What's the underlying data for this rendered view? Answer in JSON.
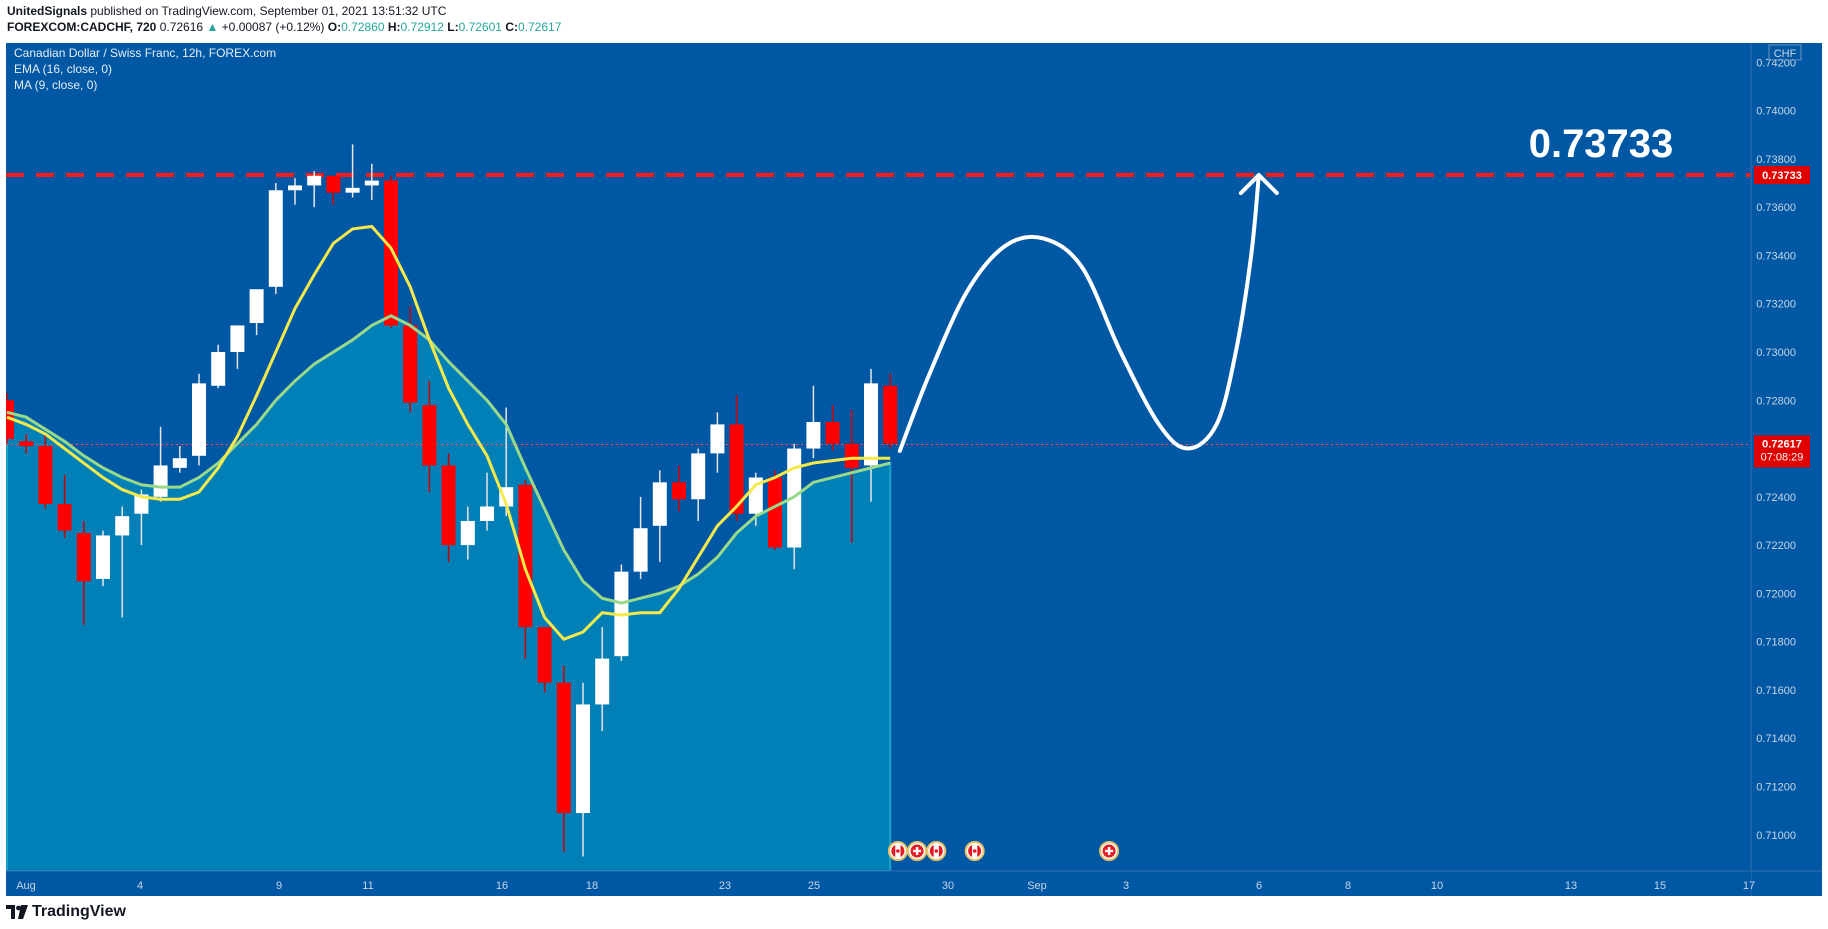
{
  "header": {
    "author": "UnitedSignals",
    "published": "published on TradingView.com, September 01, 2021 13:51:32 UTC",
    "symbol": "FOREXCOM:CADCHF, 720",
    "last": "0.72616",
    "change": "+0.00087 (+0.12%)",
    "o_label": "O:",
    "o": "0.72860",
    "h_label": "H:",
    "h": "0.72912",
    "l_label": "L:",
    "l": "0.72601",
    "c_label": "C:",
    "c": "0.72617"
  },
  "legend": {
    "title": "Canadian Dollar / Swiss Franc, 12h, FOREX.com",
    "ema": "EMA (16, close, 0)",
    "ma": "MA (9, close, 0)"
  },
  "footer": {
    "brand": "TradingView"
  },
  "colors": {
    "background": "#0057a3",
    "area": "#0080b6",
    "up": "#ffffff",
    "down": "#ff0000",
    "ema": "#f6e94a",
    "ma": "#9ad98a",
    "resistance": "#ff1a1a"
  },
  "chart_data": {
    "type": "candlestick",
    "currency": "CHF",
    "ylim": [
      0.7085,
      0.7428
    ],
    "yticks": [
      "0.74200",
      "0.74000",
      "0.73800",
      "0.73600",
      "0.73400",
      "0.73200",
      "0.73000",
      "0.72800",
      "0.72600",
      "0.72400",
      "0.72200",
      "0.72000",
      "0.71800",
      "0.71600",
      "0.71400",
      "0.71200",
      "0.71000"
    ],
    "xticks": [
      "Aug",
      "4",
      "9",
      "11",
      "16",
      "18",
      "23",
      "25",
      "30",
      "Sep",
      "3",
      "6",
      "8",
      "10",
      "13",
      "15",
      "17"
    ],
    "candles": [
      {
        "o": 0.728,
        "h": 0.7283,
        "l": 0.7262,
        "c": 0.7264
      },
      {
        "o": 0.7263,
        "h": 0.7266,
        "l": 0.7258,
        "c": 0.7261
      },
      {
        "o": 0.7261,
        "h": 0.7266,
        "l": 0.7235,
        "c": 0.7237
      },
      {
        "o": 0.7237,
        "h": 0.7249,
        "l": 0.7223,
        "c": 0.7226
      },
      {
        "o": 0.7225,
        "h": 0.723,
        "l": 0.7187,
        "c": 0.7205
      },
      {
        "o": 0.7206,
        "h": 0.7226,
        "l": 0.7203,
        "c": 0.7224
      },
      {
        "o": 0.7224,
        "h": 0.7236,
        "l": 0.719,
        "c": 0.7232
      },
      {
        "o": 0.7233,
        "h": 0.7243,
        "l": 0.722,
        "c": 0.7241
      },
      {
        "o": 0.724,
        "h": 0.7269,
        "l": 0.7238,
        "c": 0.7253
      },
      {
        "o": 0.7252,
        "h": 0.7261,
        "l": 0.725,
        "c": 0.7256
      },
      {
        "o": 0.7257,
        "h": 0.7291,
        "l": 0.7253,
        "c": 0.7287
      },
      {
        "o": 0.7286,
        "h": 0.7303,
        "l": 0.7285,
        "c": 0.73
      },
      {
        "o": 0.73,
        "h": 0.7311,
        "l": 0.7293,
        "c": 0.7311
      },
      {
        "o": 0.7312,
        "h": 0.7324,
        "l": 0.7307,
        "c": 0.7326
      },
      {
        "o": 0.7327,
        "h": 0.737,
        "l": 0.7324,
        "c": 0.7367
      },
      {
        "o": 0.7367,
        "h": 0.7372,
        "l": 0.7361,
        "c": 0.7369
      },
      {
        "o": 0.7369,
        "h": 0.7375,
        "l": 0.736,
        "c": 0.7373
      },
      {
        "o": 0.7373,
        "h": 0.7373,
        "l": 0.7361,
        "c": 0.7366
      },
      {
        "o": 0.7366,
        "h": 0.7386,
        "l": 0.7364,
        "c": 0.7368
      },
      {
        "o": 0.7369,
        "h": 0.7378,
        "l": 0.7363,
        "c": 0.7371
      },
      {
        "o": 0.7371,
        "h": 0.7373,
        "l": 0.731,
        "c": 0.7311
      },
      {
        "o": 0.7311,
        "h": 0.7319,
        "l": 0.7275,
        "c": 0.7279
      },
      {
        "o": 0.7278,
        "h": 0.7288,
        "l": 0.7242,
        "c": 0.7253
      },
      {
        "o": 0.7253,
        "h": 0.7258,
        "l": 0.7213,
        "c": 0.722
      },
      {
        "o": 0.722,
        "h": 0.7236,
        "l": 0.7214,
        "c": 0.723
      },
      {
        "o": 0.723,
        "h": 0.725,
        "l": 0.7226,
        "c": 0.7236
      },
      {
        "o": 0.7236,
        "h": 0.7277,
        "l": 0.7232,
        "c": 0.7244
      },
      {
        "o": 0.7245,
        "h": 0.7247,
        "l": 0.7173,
        "c": 0.7186
      },
      {
        "o": 0.7186,
        "h": 0.7186,
        "l": 0.7159,
        "c": 0.7163
      },
      {
        "o": 0.7163,
        "h": 0.717,
        "l": 0.7093,
        "c": 0.7109
      },
      {
        "o": 0.7109,
        "h": 0.7163,
        "l": 0.7091,
        "c": 0.7154
      },
      {
        "o": 0.7154,
        "h": 0.7186,
        "l": 0.7143,
        "c": 0.7173
      },
      {
        "o": 0.7174,
        "h": 0.7212,
        "l": 0.7172,
        "c": 0.7209
      },
      {
        "o": 0.7209,
        "h": 0.724,
        "l": 0.7206,
        "c": 0.7227
      },
      {
        "o": 0.7228,
        "h": 0.7251,
        "l": 0.7213,
        "c": 0.7246
      },
      {
        "o": 0.7246,
        "h": 0.7253,
        "l": 0.7234,
        "c": 0.7239
      },
      {
        "o": 0.7239,
        "h": 0.726,
        "l": 0.723,
        "c": 0.7258
      },
      {
        "o": 0.7258,
        "h": 0.7275,
        "l": 0.725,
        "c": 0.727
      },
      {
        "o": 0.727,
        "h": 0.7282,
        "l": 0.723,
        "c": 0.7233
      },
      {
        "o": 0.7233,
        "h": 0.725,
        "l": 0.7228,
        "c": 0.7248
      },
      {
        "o": 0.7248,
        "h": 0.7251,
        "l": 0.7218,
        "c": 0.7219
      },
      {
        "o": 0.7219,
        "h": 0.7262,
        "l": 0.721,
        "c": 0.726
      },
      {
        "o": 0.726,
        "h": 0.7286,
        "l": 0.7256,
        "c": 0.7271
      },
      {
        "o": 0.7271,
        "h": 0.7278,
        "l": 0.7259,
        "c": 0.7262
      },
      {
        "o": 0.7262,
        "h": 0.7276,
        "l": 0.7221,
        "c": 0.7252
      },
      {
        "o": 0.7253,
        "h": 0.7293,
        "l": 0.7238,
        "c": 0.7287
      },
      {
        "o": 0.7286,
        "h": 0.7291,
        "l": 0.726,
        "c": 0.7262
      }
    ],
    "ema": [
      0.7275,
      0.7273,
      0.7268,
      0.7263,
      0.7257,
      0.7252,
      0.7248,
      0.7245,
      0.7244,
      0.7244,
      0.7248,
      0.7254,
      0.7262,
      0.727,
      0.728,
      0.7288,
      0.7295,
      0.73,
      0.7305,
      0.7311,
      0.7315,
      0.7311,
      0.7305,
      0.7296,
      0.7288,
      0.728,
      0.727,
      0.7252,
      0.7235,
      0.7218,
      0.7205,
      0.7198,
      0.7196,
      0.7198,
      0.72,
      0.7203,
      0.7208,
      0.7215,
      0.7225,
      0.7232,
      0.7236,
      0.724,
      0.7246,
      0.7248,
      0.725,
      0.7252,
      0.7254
    ],
    "ma": [
      0.7273,
      0.727,
      0.7266,
      0.726,
      0.7254,
      0.7248,
      0.7243,
      0.724,
      0.7239,
      0.7239,
      0.7242,
      0.7252,
      0.7265,
      0.7282,
      0.73,
      0.7318,
      0.7332,
      0.7345,
      0.7351,
      0.7352,
      0.7343,
      0.7327,
      0.7305,
      0.7285,
      0.727,
      0.7257,
      0.7237,
      0.721,
      0.719,
      0.7181,
      0.7184,
      0.7192,
      0.7191,
      0.7192,
      0.7192,
      0.7202,
      0.7215,
      0.7228,
      0.7236,
      0.7245,
      0.7248,
      0.7252,
      0.7254,
      0.7255,
      0.7256,
      0.7256,
      0.7256
    ],
    "resistance": {
      "value": 0.73733,
      "label": "0.73733",
      "tag": "0.73733"
    },
    "last_price": {
      "value": 0.72617,
      "label": "0.72617",
      "countdown": "07:08:29"
    },
    "projection": [
      [
        46.5,
        0.7259
      ],
      [
        48.0,
        0.729
      ],
      [
        50.0,
        0.7325
      ],
      [
        52.0,
        0.7344
      ],
      [
        54.0,
        0.7347
      ],
      [
        56.0,
        0.7335
      ],
      [
        58.0,
        0.73
      ],
      [
        60.0,
        0.727
      ],
      [
        61.5,
        0.726
      ],
      [
        63.0,
        0.727
      ],
      [
        64.0,
        0.73
      ],
      [
        64.8,
        0.734
      ],
      [
        65.2,
        0.73733
      ]
    ],
    "events": [
      {
        "x": 46.4,
        "kind": "cad"
      },
      {
        "x": 47.4,
        "kind": "chf"
      },
      {
        "x": 48.4,
        "kind": "cad"
      },
      {
        "x": 50.4,
        "kind": "cad"
      },
      {
        "x": 57.4,
        "kind": "chf"
      }
    ]
  }
}
